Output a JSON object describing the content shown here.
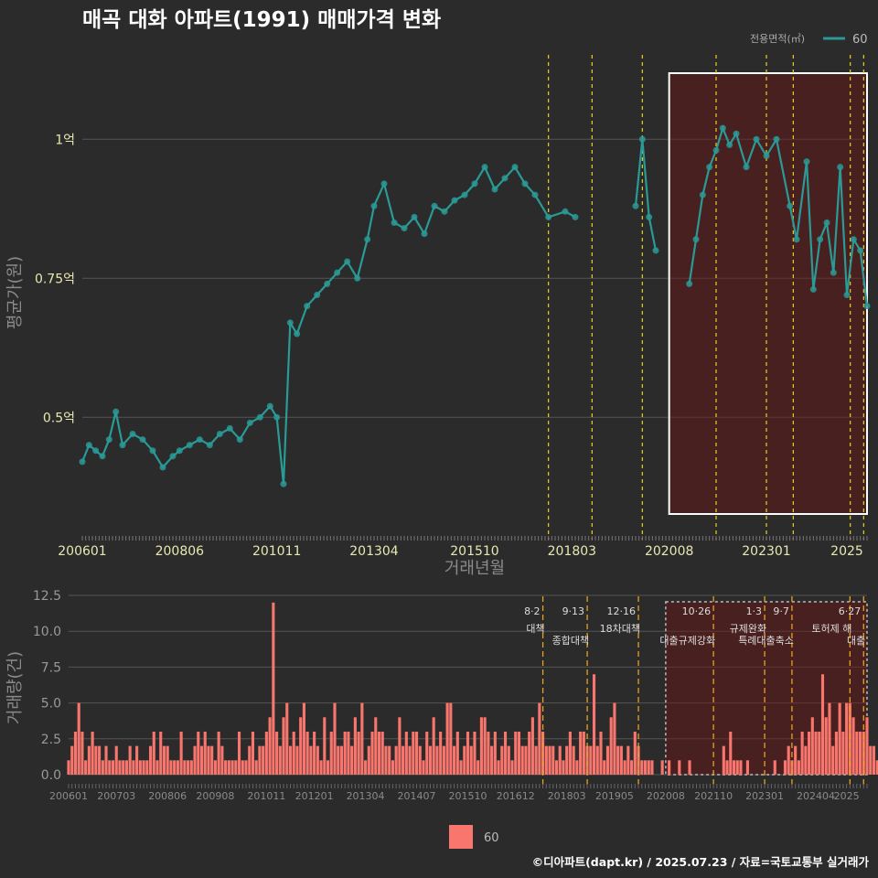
{
  "header": {
    "title": "매곡 대화 아파트(1991) 매매가격 변화"
  },
  "legend": {
    "title": "전용면적(㎡)",
    "series_label": "60",
    "color": "#2a9a96"
  },
  "bottom_legend": {
    "label": "60",
    "color": "#f8766d"
  },
  "footer": {
    "text": "©디아파트(dapt.kr) / 2025.07.23 / 자료=국토교통부 실거래가"
  },
  "chart_data": [
    {
      "type": "line",
      "title": "매곡 대화 아파트(1991) 매매가격 변화",
      "xlabel": "거래년월",
      "ylabel": "평균가(원)",
      "x_range": [
        "2006-01",
        "2025-07"
      ],
      "x_ticks": [
        "200601",
        "200806",
        "201011",
        "201304",
        "201510",
        "201803",
        "202008",
        "202301",
        "2025"
      ],
      "y_ticks": [
        {
          "value": 0.5,
          "label": "0.5억"
        },
        {
          "value": 0.75,
          "label": "0.75억"
        },
        {
          "value": 1.0,
          "label": "1억"
        }
      ],
      "ylim": [
        0.28,
        1.16
      ],
      "unit": "억",
      "series": [
        {
          "name": "60",
          "points": [
            [
              "2006-01",
              0.42
            ],
            [
              "2006-03",
              0.45
            ],
            [
              "2006-05",
              0.44
            ],
            [
              "2006-07",
              0.43
            ],
            [
              "2006-09",
              0.46
            ],
            [
              "2006-11",
              0.51
            ],
            [
              "2007-01",
              0.45
            ],
            [
              "2007-04",
              0.47
            ],
            [
              "2007-07",
              0.46
            ],
            [
              "2007-10",
              0.44
            ],
            [
              "2008-01",
              0.41
            ],
            [
              "2008-04",
              0.43
            ],
            [
              "2008-06",
              0.44
            ],
            [
              "2008-09",
              0.45
            ],
            [
              "2008-12",
              0.46
            ],
            [
              "2009-03",
              0.45
            ],
            [
              "2009-06",
              0.47
            ],
            [
              "2009-09",
              0.48
            ],
            [
              "2009-12",
              0.46
            ],
            [
              "2010-03",
              0.49
            ],
            [
              "2010-06",
              0.5
            ],
            [
              "2010-09",
              0.52
            ],
            [
              "2010-11",
              0.5
            ],
            [
              "2011-01",
              0.38
            ],
            [
              "2011-03",
              0.67
            ],
            [
              "2011-05",
              0.65
            ],
            [
              "2011-08",
              0.7
            ],
            [
              "2011-11",
              0.72
            ],
            [
              "2012-02",
              0.74
            ],
            [
              "2012-05",
              0.76
            ],
            [
              "2012-08",
              0.78
            ],
            [
              "2012-11",
              0.75
            ],
            [
              "2013-02",
              0.82
            ],
            [
              "2013-04",
              0.88
            ],
            [
              "2013-07",
              0.92
            ],
            [
              "2013-10",
              0.85
            ],
            [
              "2014-01",
              0.84
            ],
            [
              "2014-04",
              0.86
            ],
            [
              "2014-07",
              0.83
            ],
            [
              "2014-10",
              0.88
            ],
            [
              "2015-01",
              0.87
            ],
            [
              "2015-04",
              0.89
            ],
            [
              "2015-07",
              0.9
            ],
            [
              "2015-10",
              0.92
            ],
            [
              "2016-01",
              0.95
            ],
            [
              "2016-04",
              0.91
            ],
            [
              "2016-07",
              0.93
            ],
            [
              "2016-10",
              0.95
            ],
            [
              "2017-01",
              0.92
            ],
            [
              "2017-04",
              0.9
            ],
            [
              "2017-08",
              0.86
            ],
            [
              "2018-01",
              0.87
            ],
            [
              "2018-04",
              0.86
            ],
            [
              "2019-10",
              0.88
            ],
            [
              "2019-12",
              1.0
            ],
            [
              "2020-02",
              0.86
            ],
            [
              "2020-04",
              0.8
            ],
            [
              "2021-02",
              0.74
            ],
            [
              "2021-04",
              0.82
            ],
            [
              "2021-06",
              0.9
            ],
            [
              "2021-08",
              0.95
            ],
            [
              "2021-10",
              0.98
            ],
            [
              "2021-12",
              1.02
            ],
            [
              "2022-02",
              0.99
            ],
            [
              "2022-04",
              1.01
            ],
            [
              "2022-07",
              0.95
            ],
            [
              "2022-10",
              1.0
            ],
            [
              "2023-01",
              0.97
            ],
            [
              "2023-04",
              1.0
            ],
            [
              "2023-08",
              0.88
            ],
            [
              "2023-10",
              0.82
            ],
            [
              "2024-01",
              0.96
            ],
            [
              "2024-03",
              0.73
            ],
            [
              "2024-05",
              0.82
            ],
            [
              "2024-07",
              0.85
            ],
            [
              "2024-09",
              0.76
            ],
            [
              "2024-11",
              0.95
            ],
            [
              "2025-01",
              0.72
            ],
            [
              "2025-03",
              0.82
            ],
            [
              "2025-05",
              0.8
            ],
            [
              "2025-07",
              0.7
            ]
          ]
        }
      ],
      "event_lines": [
        "2017-08",
        "2018-09",
        "2019-12",
        "2021-10",
        "2023-01",
        "2023-09",
        "2025-02",
        "2025-06"
      ],
      "highlight": {
        "x": [
          "2020-08",
          "2025-07"
        ],
        "border": "#ffffff",
        "fill": "rgba(110,20,20,0.45)"
      }
    },
    {
      "type": "bar",
      "xlabel": "",
      "ylabel": "거래량(건)",
      "x_range": [
        "2006-01",
        "2025-07"
      ],
      "x_ticks": [
        "200601",
        "200703",
        "200806",
        "200908",
        "201011",
        "201201",
        "201304",
        "201407",
        "201510",
        "201612",
        "201803",
        "201905",
        "202008",
        "202110",
        "202301",
        "202404",
        "2025"
      ],
      "y_ticks": [
        0,
        2.5,
        5,
        7.5,
        10,
        12.5
      ],
      "ylim": [
        0,
        12.5
      ],
      "series": [
        {
          "name": "60",
          "values": [
            1,
            2,
            3,
            5,
            3,
            1,
            2,
            3,
            2,
            2,
            1,
            2,
            1,
            1,
            2,
            1,
            1,
            1,
            2,
            1,
            2,
            1,
            1,
            1,
            2,
            3,
            1,
            3,
            2,
            2,
            1,
            1,
            1,
            3,
            1,
            1,
            1,
            2,
            3,
            2,
            3,
            2,
            2,
            1,
            3,
            2,
            1,
            1,
            1,
            1,
            3,
            1,
            1,
            2,
            3,
            1,
            2,
            2,
            3,
            4,
            12,
            3,
            2,
            4,
            5,
            2,
            3,
            2,
            4,
            5,
            3,
            2,
            3,
            2,
            1,
            4,
            1,
            3,
            5,
            2,
            2,
            3,
            3,
            2,
            4,
            3,
            5,
            1,
            2,
            3,
            4,
            3,
            3,
            2,
            2,
            1,
            2,
            4,
            2,
            3,
            2,
            3,
            3,
            2,
            1,
            3,
            2,
            4,
            2,
            3,
            2,
            5,
            5,
            2,
            3,
            1,
            2,
            3,
            2,
            3,
            1,
            4,
            4,
            3,
            2,
            3,
            1,
            2,
            3,
            2,
            1,
            3,
            3,
            2,
            2,
            3,
            4,
            2,
            5,
            3,
            2,
            2,
            2,
            1,
            2,
            1,
            2,
            3,
            2,
            1,
            3,
            3,
            2,
            2,
            7,
            2,
            3,
            1,
            2,
            4,
            5,
            2,
            2,
            1,
            2,
            1,
            3,
            2,
            1,
            1,
            1,
            1,
            0,
            0,
            1,
            0,
            1,
            0,
            0,
            1,
            0,
            0,
            1,
            0,
            0,
            0,
            0,
            0,
            0,
            0,
            0,
            0,
            2,
            1,
            3,
            1,
            1,
            1,
            0,
            1,
            0,
            0,
            0,
            0,
            0,
            0,
            0,
            1,
            0,
            0,
            1,
            2,
            1,
            2,
            1,
            3,
            2,
            3,
            4,
            3,
            3,
            7,
            4,
            5,
            2,
            3,
            5,
            3,
            5,
            5,
            4,
            3,
            3,
            3,
            4,
            2,
            2,
            1,
            1,
            2,
            2,
            1,
            1,
            0,
            1,
            2,
            1,
            1,
            1,
            1,
            1,
            2,
            1,
            1,
            1,
            1,
            1,
            1,
            3,
            1,
            2,
            0,
            1,
            1
          ]
        }
      ],
      "events": [
        {
          "x": "2017-08",
          "date": "8·2",
          "name": "대책"
        },
        {
          "x": "2018-09",
          "date": "9·13",
          "name": "종합대책"
        },
        {
          "x": "2019-12",
          "date": "12·16",
          "name": "18차대책"
        },
        {
          "x": "2021-10",
          "date": "10·26",
          "name": "대출규제강화"
        },
        {
          "x": "2023-01",
          "date": "1·3",
          "name": "규제완화"
        },
        {
          "x": "2023-09",
          "date": "9·7",
          "name": "특례대출축소"
        },
        {
          "x": "2025-02",
          "date": "",
          "name": "토허제 해"
        },
        {
          "x": "2025-06",
          "date": "6·27",
          "name": "대출"
        }
      ],
      "highlight": {
        "x": [
          "2020-08",
          "2025-07"
        ],
        "border": "#bbbbbb",
        "fill": "rgba(110,20,20,0.45)"
      }
    }
  ]
}
